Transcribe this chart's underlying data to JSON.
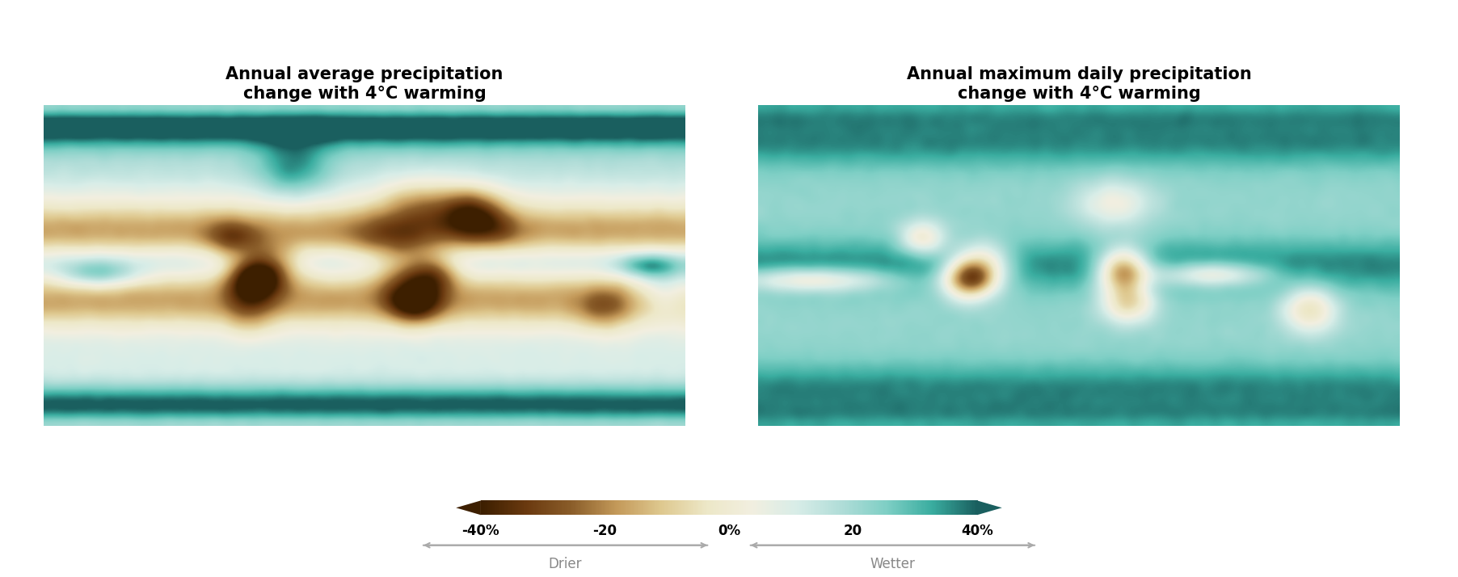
{
  "title_left": "Annual average precipitation\nchange with 4°C warming",
  "title_right": "Annual maximum daily precipitation\nchange with 4°C warming",
  "colorbar_colors": [
    "#3d1f00",
    "#8b5e2a",
    "#c49a5a",
    "#e8d5a3",
    "#f5f0e0",
    "#c8e8e4",
    "#7ecfc5",
    "#3aada0",
    "#1a5f5f"
  ],
  "colorbar_ticks": [
    -40,
    -20,
    0,
    20,
    40
  ],
  "colorbar_ticklabels": [
    "-40%",
    "-20",
    "0%",
    "20",
    "40%"
  ],
  "label_drier": "Drier",
  "label_wetter": "Wetter",
  "background_color": "#ffffff",
  "title_fontsize": 15,
  "label_fontsize": 12,
  "tick_fontsize": 12,
  "colorbar_label_color": "#888888"
}
